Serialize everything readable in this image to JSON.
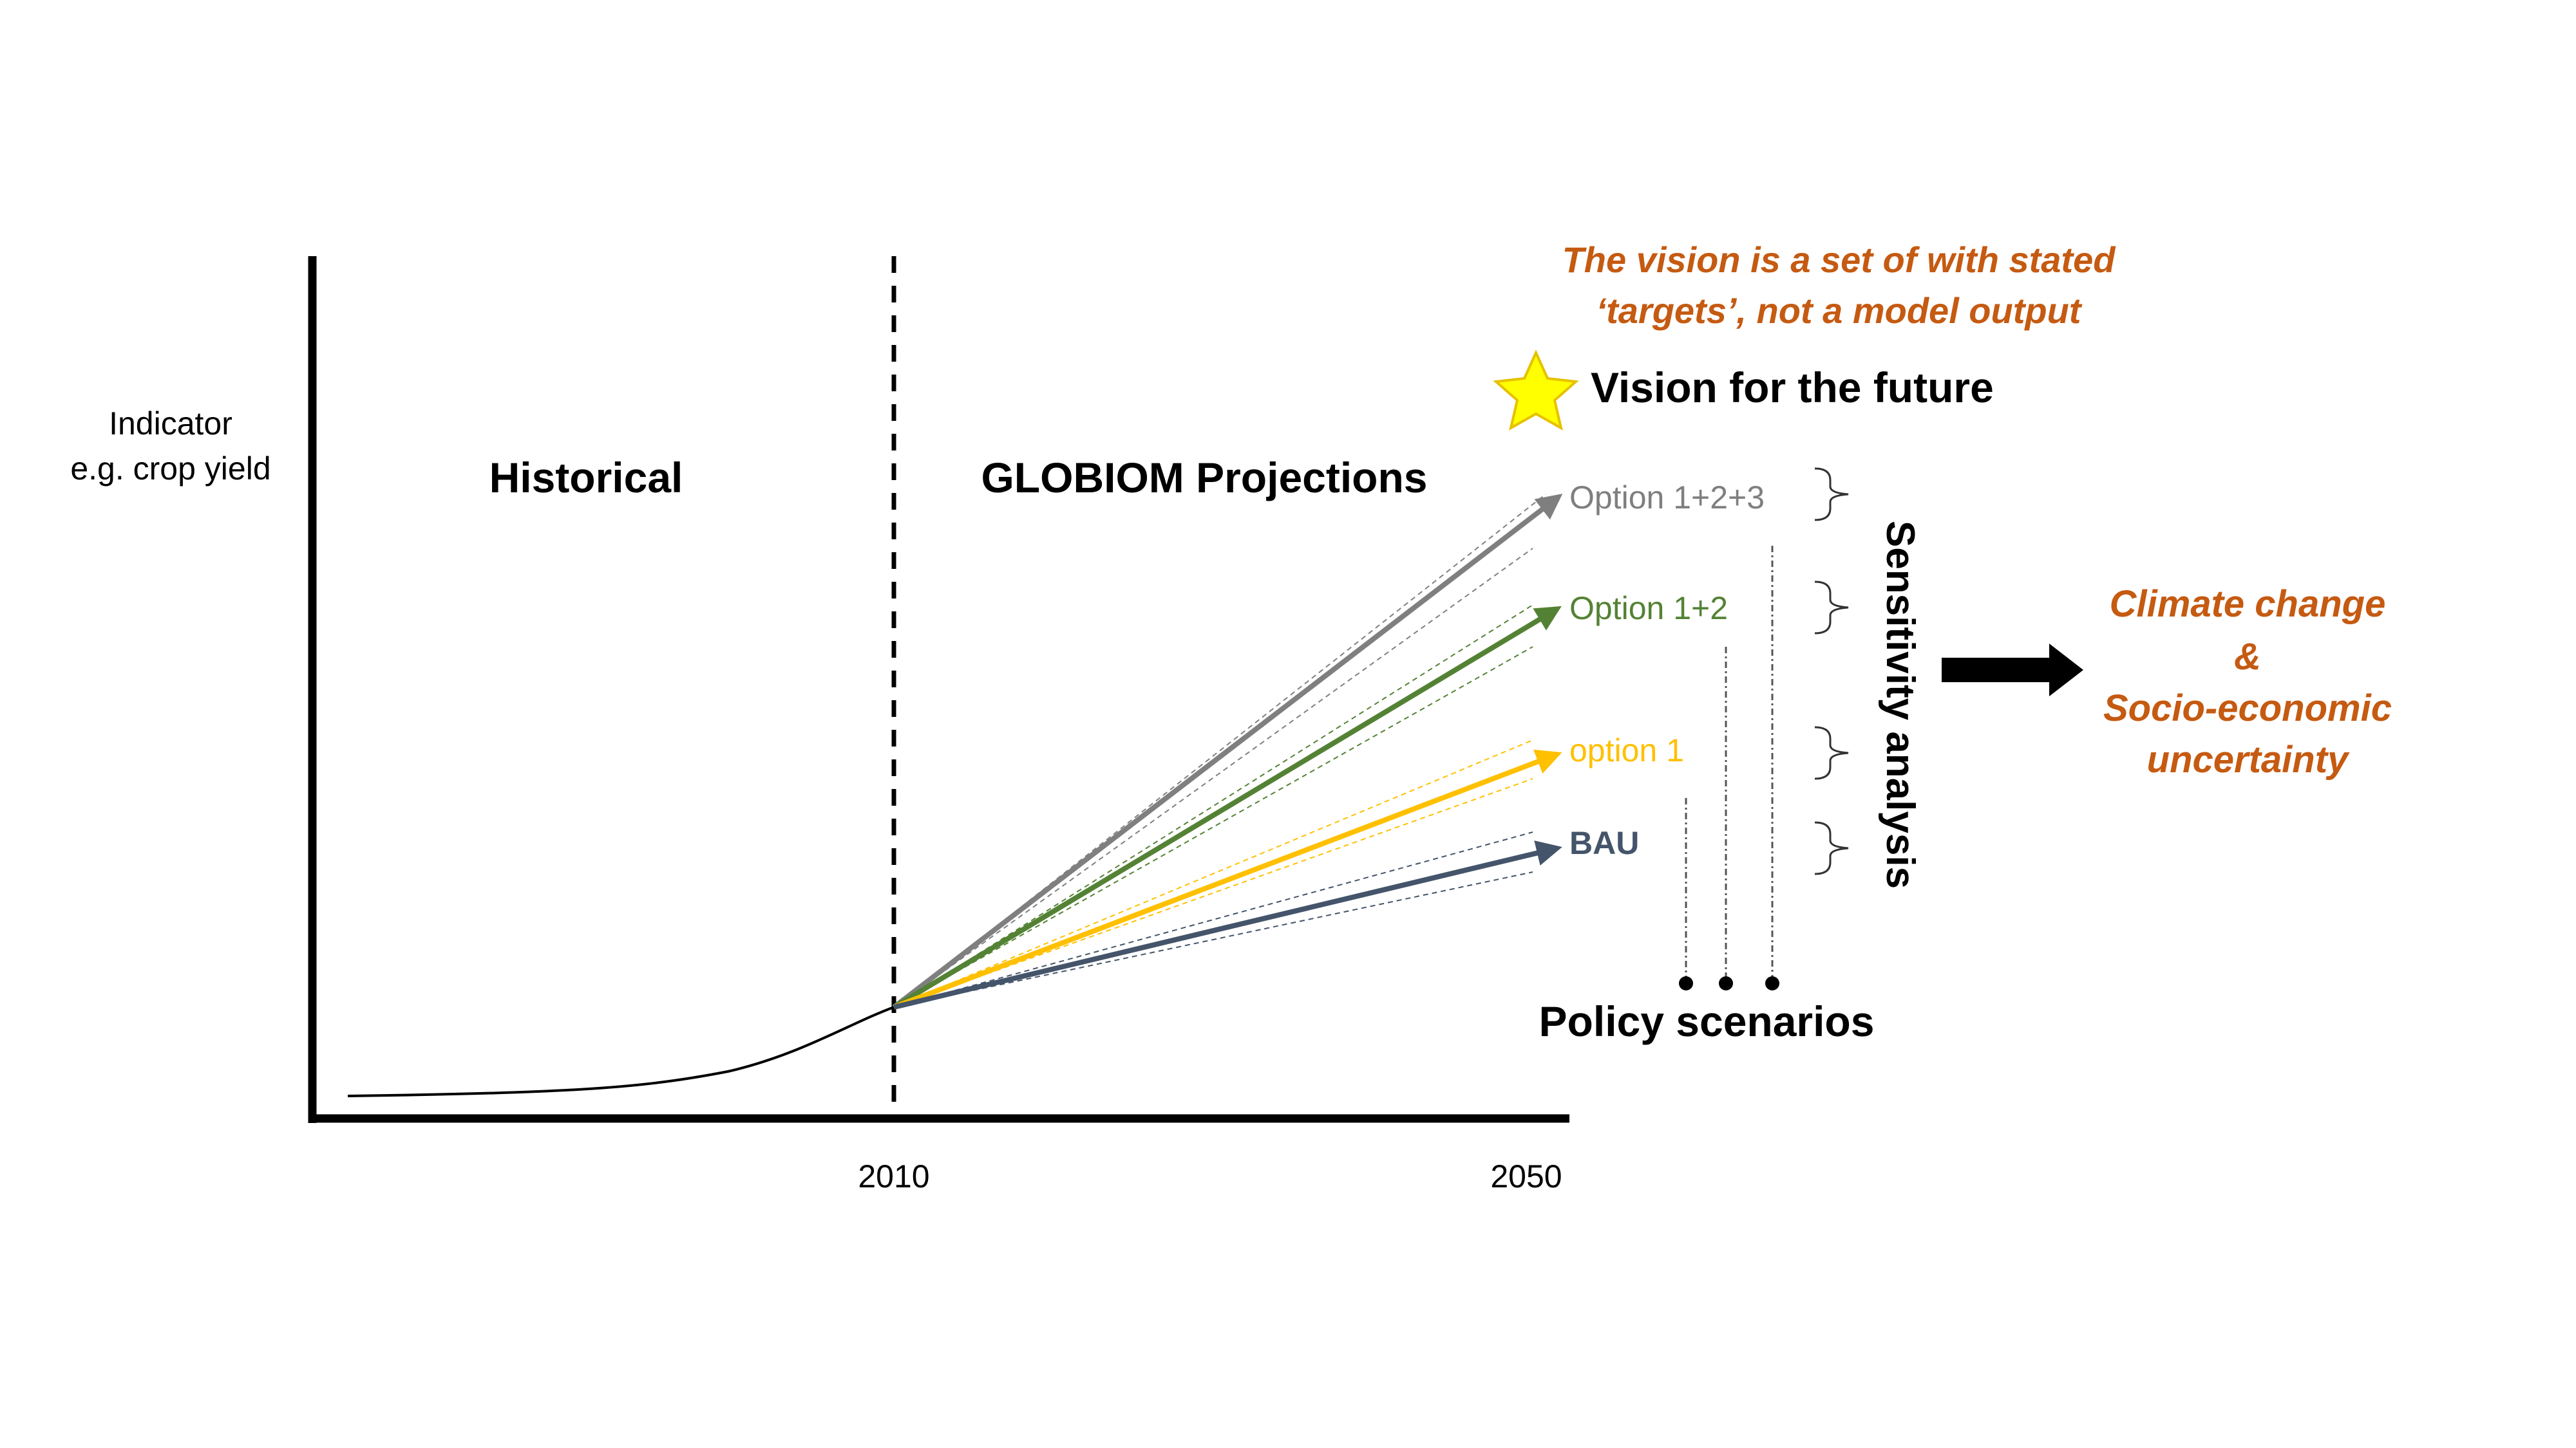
{
  "colors": {
    "axis": "#000000",
    "historical_curve": "#000000",
    "option123": "#7f7f7f",
    "option12": "#548235",
    "option1": "#ffc000",
    "bau": "#44546a",
    "orange_text": "#c55a11",
    "star_fill": "#ffff00",
    "star_stroke": "#e6c200"
  },
  "icons": {
    "star": "star-icon",
    "big_arrow": "right-arrow-icon"
  },
  "axis": {
    "y_label_line1": "Indicator",
    "y_label_line2": "e.g. crop yield",
    "x_tick_2010": "2010",
    "x_tick_2050": "2050"
  },
  "regions": {
    "historical": "Historical",
    "projections": "GLOBIOM Projections"
  },
  "scenarios": [
    {
      "id": "option123",
      "label": "Option 1+2+3"
    },
    {
      "id": "option12",
      "label": "Option 1+2"
    },
    {
      "id": "option1",
      "label": "option 1"
    },
    {
      "id": "bau",
      "label": "BAU"
    }
  ],
  "vision": {
    "note_line1": "The vision is a set of with stated",
    "note_line2": "‘targets’, not a model output",
    "label": "Vision for the future"
  },
  "sensitivity_label": "Sensitivity analysis",
  "policy_label": "Policy scenarios",
  "uncertainty": {
    "line1": "Climate change",
    "line2": "&",
    "line3": "Socio-economic",
    "line4": "uncertainty"
  }
}
